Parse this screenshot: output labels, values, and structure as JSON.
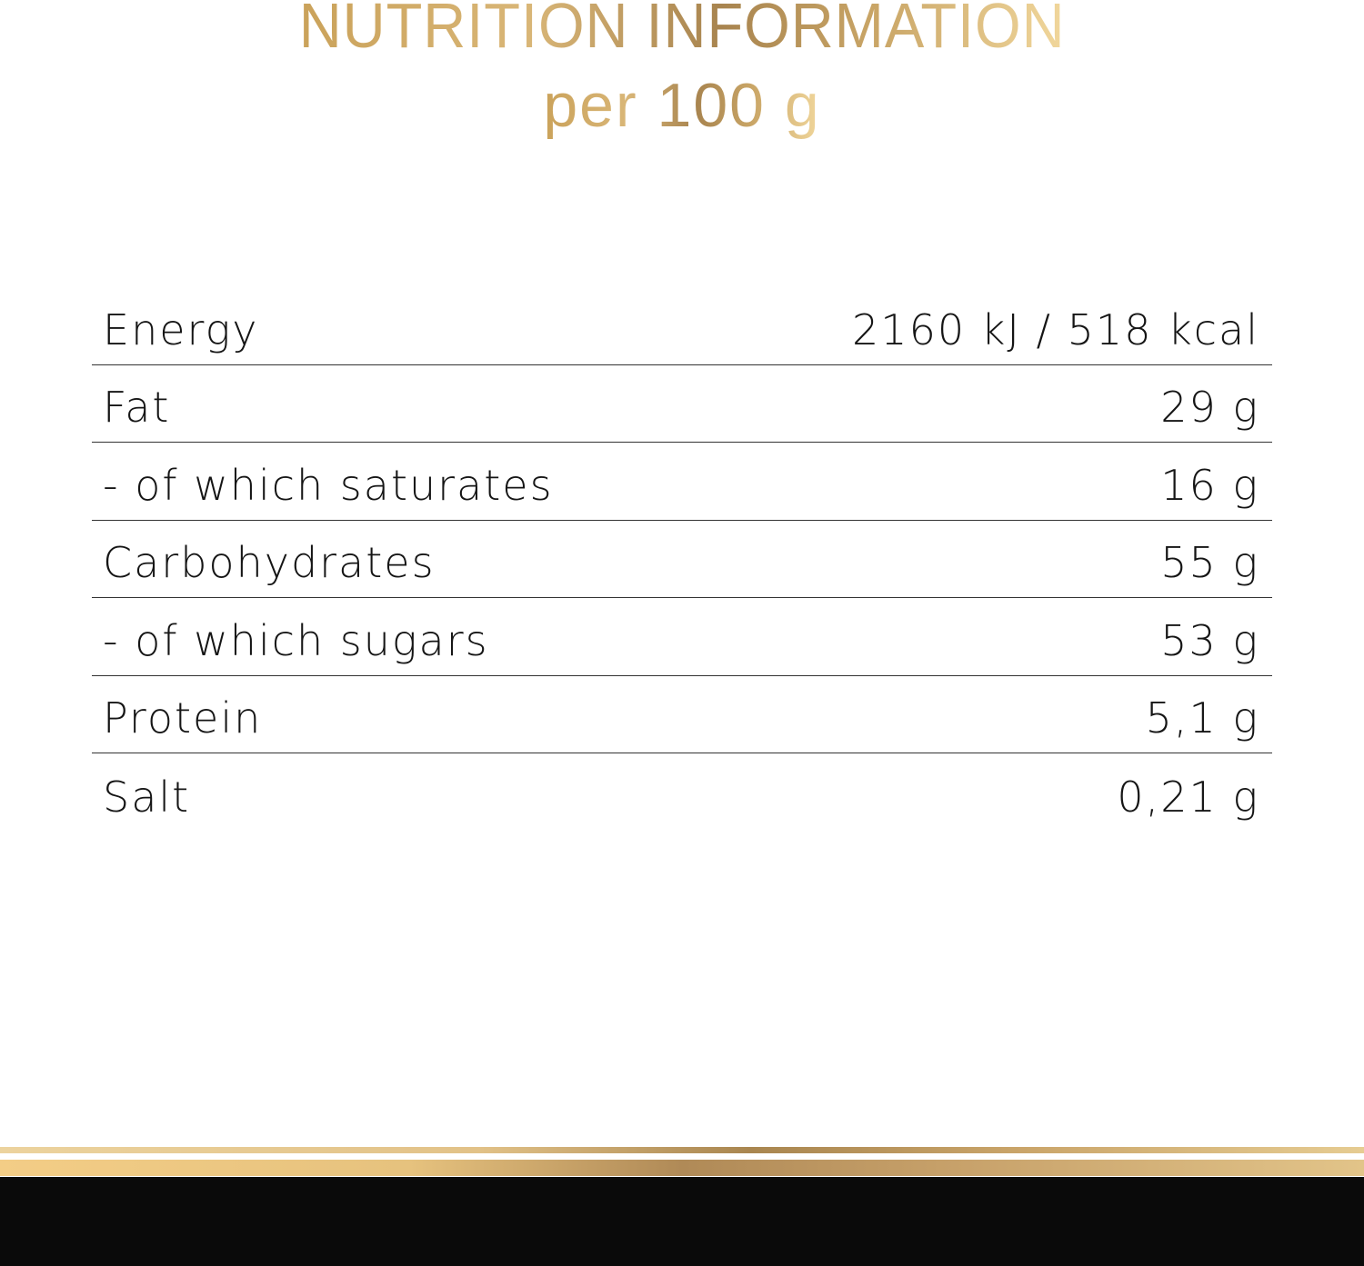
{
  "header": {
    "title": "NUTRITION INFORMATION",
    "subtitle": "per 100 g"
  },
  "nutrition": {
    "rows": [
      {
        "label": "Energy",
        "value": "2160 kJ / 518 kcal"
      },
      {
        "label": "Fat",
        "value": "29 g"
      },
      {
        "label": "- of which saturates",
        "value": "16 g"
      },
      {
        "label": "Carbohydrates",
        "value": "55 g"
      },
      {
        "label": "- of which sugars",
        "value": "53 g"
      },
      {
        "label": "Protein",
        "value": "5,1 g"
      },
      {
        "label": "Salt",
        "value": "0,21 g"
      }
    ]
  },
  "colors": {
    "gold": "#c9a566",
    "footer": "#0a0a0a",
    "text": "#151515"
  }
}
